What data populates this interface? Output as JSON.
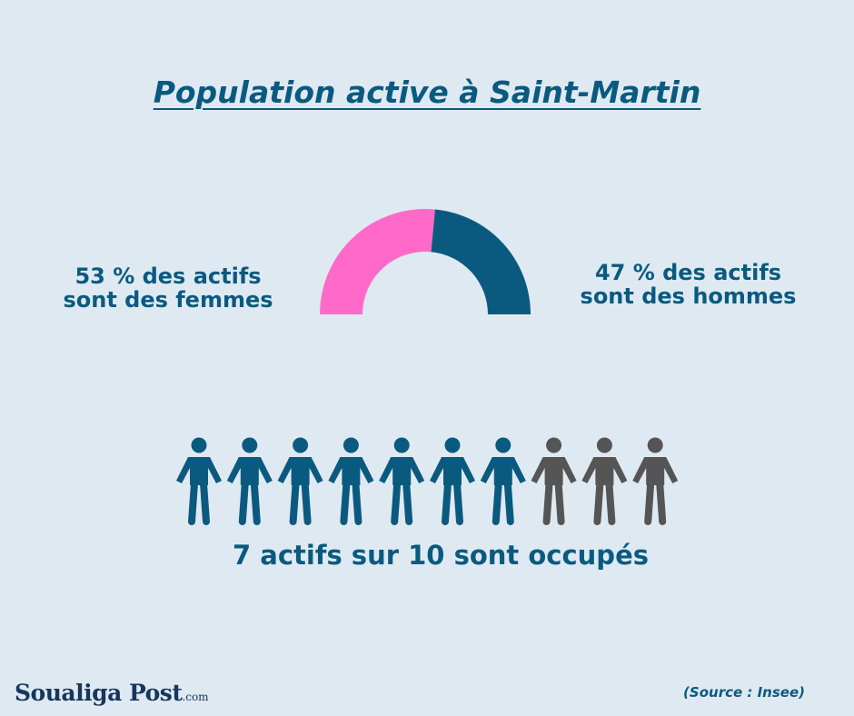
{
  "title": "Population active à Saint-Martin",
  "labels": {
    "women": [
      "53 % des actifs",
      "sont des femmes"
    ],
    "men": [
      "47 % des actifs",
      "sont des hommes"
    ],
    "summary": "7 actifs sur 10 sont occupés",
    "source": "(Source : Insee)",
    "logo": "Soualiga Post",
    "logo_suffix": ".com"
  },
  "colors": {
    "women": "#ff6ac8",
    "men": "#0a5a80",
    "employed": "#0a5a80",
    "not_employed": "#555555",
    "text": "#0a5a80"
  },
  "chart_data": [
    {
      "type": "pie",
      "variant": "half-donut",
      "categories": [
        "femmes",
        "hommes"
      ],
      "values": [
        53,
        47
      ]
    },
    {
      "type": "pictogram",
      "total": 10,
      "highlighted": 7,
      "icon": "person-icon"
    }
  ]
}
